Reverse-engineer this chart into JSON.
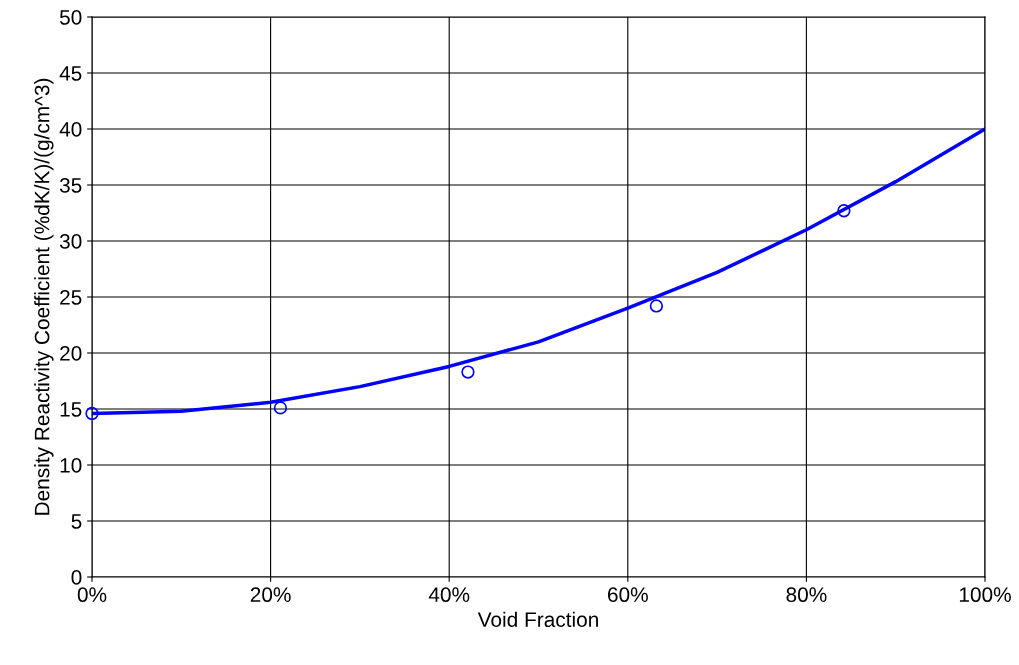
{
  "chart_data": {
    "type": "scatter",
    "xlabel": "Void Fraction",
    "ylabel": "Density Reactivity Coefficient (%dK/K)/(g/cm^3)",
    "series": [
      {
        "color": "#0000ff",
        "marker": "circle",
        "x": [
          0,
          21.1,
          42.1,
          63.2,
          84.2
        ],
        "values": [
          14.6,
          15.1,
          18.3,
          24.2,
          32.7
        ]
      },
      {
        "type": "line",
        "color": "#0000ff",
        "marker": "none",
        "line_style": "solid",
        "x": [
          0,
          10,
          20,
          30,
          40,
          50,
          60,
          70,
          80,
          90,
          100
        ],
        "values": [
          14.6,
          14.8,
          15.6,
          17.0,
          18.8,
          21.0,
          24.0,
          27.2,
          31.0,
          35.3,
          40.0
        ]
      }
    ],
    "xlim": [
      0,
      100
    ],
    "xticks": [
      {
        "value": 0,
        "label": "0%"
      },
      {
        "value": 20,
        "label": "20%"
      },
      {
        "value": 40,
        "label": "40%"
      },
      {
        "value": 60,
        "label": "60%"
      },
      {
        "value": 80,
        "label": "80%"
      },
      {
        "value": 100,
        "label": "100%"
      }
    ],
    "ylim": [
      0,
      50
    ],
    "yticks": [
      0,
      5,
      10,
      15,
      20,
      25,
      30,
      35,
      40,
      45,
      50
    ],
    "grid": true
  }
}
